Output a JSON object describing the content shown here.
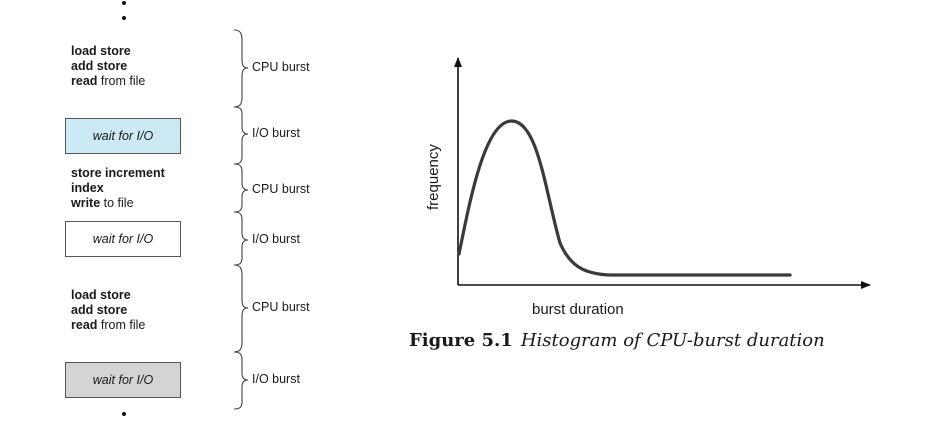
{
  "sequence": {
    "blocks": [
      {
        "kind": "cpu",
        "lines": [
          {
            "bold": "load store",
            "rest": ""
          },
          {
            "bold": "add store",
            "rest": ""
          },
          {
            "bold": "read",
            "rest": " from file"
          }
        ]
      },
      {
        "kind": "io",
        "label": "wait for I/O",
        "fill": "#cce9f6"
      },
      {
        "kind": "cpu",
        "lines": [
          {
            "bold": "store increment",
            "rest": ""
          },
          {
            "bold": "index",
            "rest": ""
          },
          {
            "bold": "write",
            "rest": " to file"
          }
        ]
      },
      {
        "kind": "io",
        "label": "wait for I/O",
        "fill": "#ffffff"
      },
      {
        "kind": "cpu",
        "lines": [
          {
            "bold": "load store",
            "rest": ""
          },
          {
            "bold": "add store",
            "rest": ""
          },
          {
            "bold": "read",
            "rest": " from file"
          }
        ]
      },
      {
        "kind": "io",
        "label": "wait for I/O",
        "fill": "#d4d4d4"
      }
    ],
    "bursts": [
      "CPU burst",
      "I/O burst",
      "CPU burst",
      "I/O burst",
      "CPU burst",
      "I/O burst"
    ]
  },
  "histogram": {
    "ylabel": "frequency",
    "xlabel": "burst duration"
  },
  "caption": {
    "figure": "Figure 5.1",
    "title": "Histogram of CPU-burst duration"
  }
}
